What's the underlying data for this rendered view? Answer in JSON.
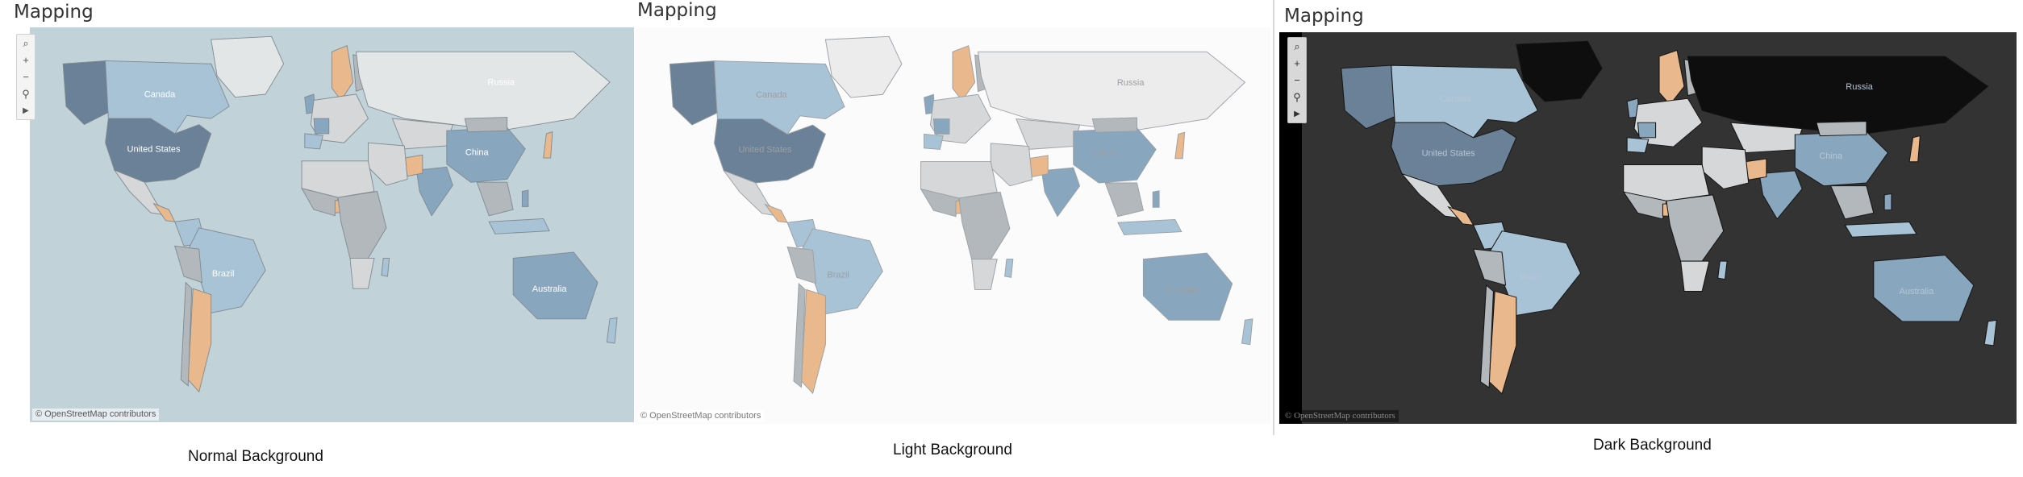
{
  "panels": [
    {
      "id": "normal",
      "title": "Mapping",
      "caption": "Normal Background",
      "attribution": "© OpenStreetMap contributors",
      "ocean": "#c1d2d9",
      "land": "#e3e6e7",
      "text_color": "#ffffff"
    },
    {
      "id": "light",
      "title": "Mapping",
      "caption": "Light Background",
      "attribution": "© OpenStreetMap contributors",
      "ocean": "#fbfbfb",
      "land": "#ececec",
      "text_color": "#9aa0a4"
    },
    {
      "id": "dark",
      "title": "Mapping",
      "caption": "Dark Background",
      "attribution": "© OpenStreetMap contributors",
      "ocean": "#333333",
      "land": "#0e0e0e",
      "text_color": "#b5c7d4"
    }
  ],
  "country_labels": {
    "russia": "Russia",
    "canada": "Canada",
    "us": "United States",
    "china": "China",
    "brazil": "Brazil",
    "australia": "Australia"
  },
  "toolbar_icons": [
    "search-icon",
    "zoom-in-icon",
    "zoom-out-icon",
    "pin-icon",
    "expand-arrow-icon"
  ],
  "colors": {
    "dark_blue": "#6a8197",
    "light_blue": "#a9c3d6",
    "mid_blue": "#89a6bf",
    "orange": "#e9b88c",
    "grey": "#b3b8bc",
    "pale_grey": "#d5d7d8"
  }
}
